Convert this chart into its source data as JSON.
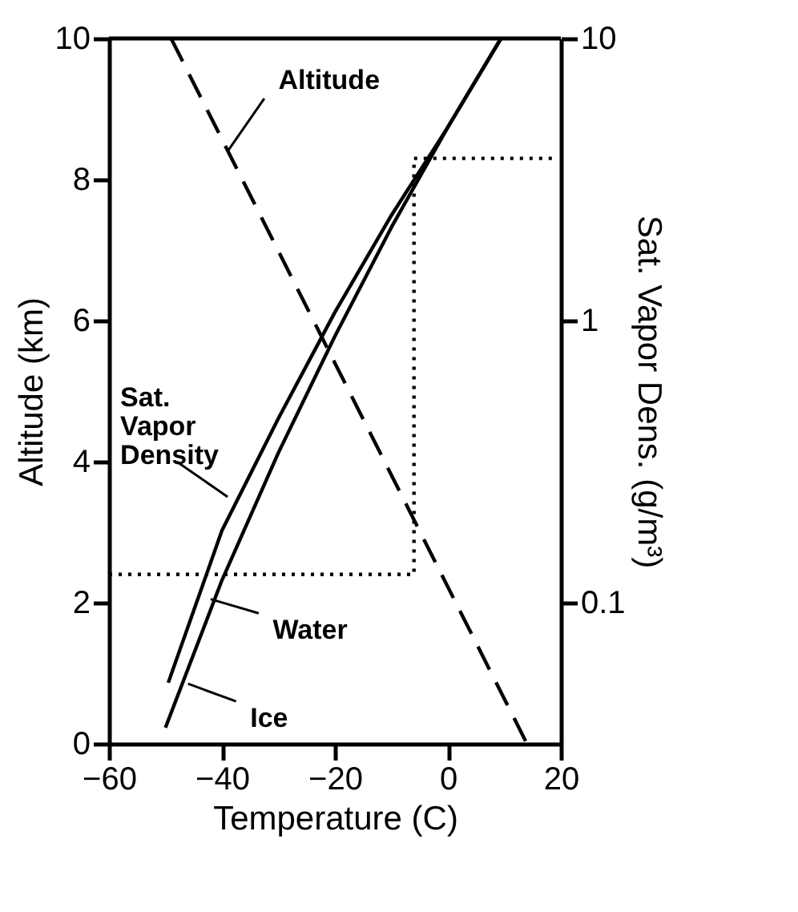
{
  "chart_data": {
    "type": "line",
    "xlabel": "Temperature (C)",
    "ylabel": "Altitude (km)",
    "y2label": "Sat. Vapor Dens. (g/m³)",
    "xlim": [
      -60,
      20
    ],
    "xticks": [
      -60,
      -40,
      -20,
      0,
      20
    ],
    "ylim": [
      0,
      10
    ],
    "yticks": [
      0,
      2,
      4,
      6,
      8,
      10
    ],
    "y2lim": [
      0.0316,
      10
    ],
    "y2ticks": [
      0.1,
      1,
      10
    ],
    "log": "y2",
    "grid": false,
    "marker": "none",
    "series": [
      {
        "color": "#000000",
        "line_style": "dashed",
        "x": [
          -49,
          14
        ],
        "values": [
          10,
          0
        ]
      },
      {
        "color": "#000000",
        "line_style": "dotted",
        "x": [
          -60,
          -6,
          -6,
          19.5
        ],
        "values": [
          2.4,
          2.4,
          8.3,
          8.3
        ]
      },
      {
        "color": "#000000",
        "line_style": "solid",
        "axis": "y2",
        "x": [
          -49.5,
          -40,
          -30,
          -20,
          -10,
          0,
          9.4
        ],
        "values": [
          0.052,
          0.18,
          0.45,
          1.07,
          2.36,
          4.85,
          10
        ]
      },
      {
        "color": "#000000",
        "line_style": "solid",
        "axis": "y2",
        "x": [
          -50,
          -40,
          -30,
          -20,
          -10,
          0,
          9.4
        ],
        "values": [
          0.036,
          0.12,
          0.34,
          0.88,
          2.14,
          4.85,
          10
        ]
      }
    ],
    "annotations": [
      {
        "text": "Altitude",
        "x": -39,
        "y": 8.4
      },
      {
        "text": "Sat. Vapor Density",
        "x": -39,
        "y": 3.5
      },
      {
        "text": "Water",
        "x": -42,
        "y": 2.05
      },
      {
        "text": "Ice",
        "x": -46,
        "y": 0.85
      }
    ]
  }
}
